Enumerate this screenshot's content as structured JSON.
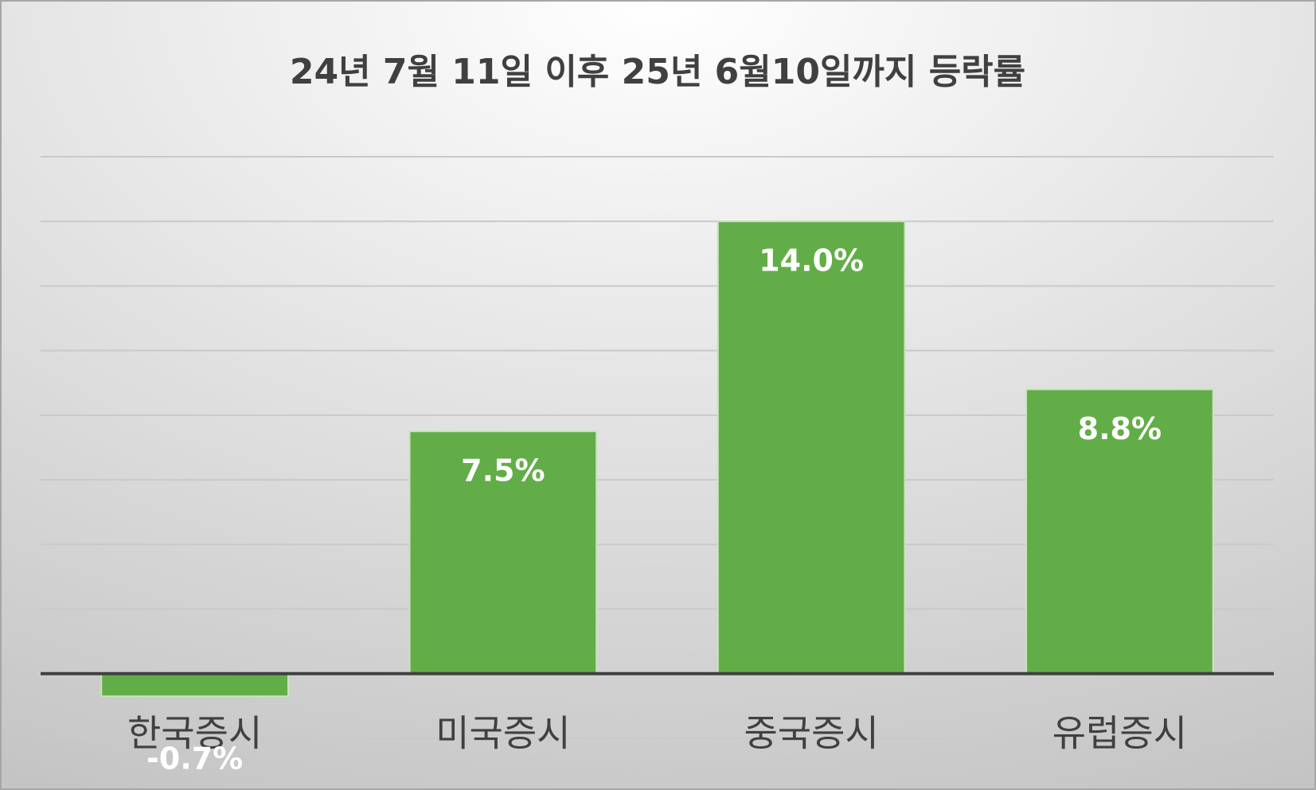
{
  "chart_data": {
    "type": "bar",
    "title": "24년 7월 11일 이후 25년 6월10일까지 등락률",
    "categories": [
      "한국증시",
      "미국증시",
      "중국증시",
      "유럽증시"
    ],
    "values": [
      -0.7,
      7.5,
      14.0,
      8.8
    ],
    "value_labels": [
      "-0.7%",
      "7.5%",
      "14.0%",
      "8.8%"
    ],
    "color": "#62ad47",
    "ylim": [
      -2,
      16
    ],
    "yticks": [
      -2,
      0,
      2,
      4,
      6,
      8,
      10,
      12,
      14,
      16
    ],
    "grid": true
  }
}
